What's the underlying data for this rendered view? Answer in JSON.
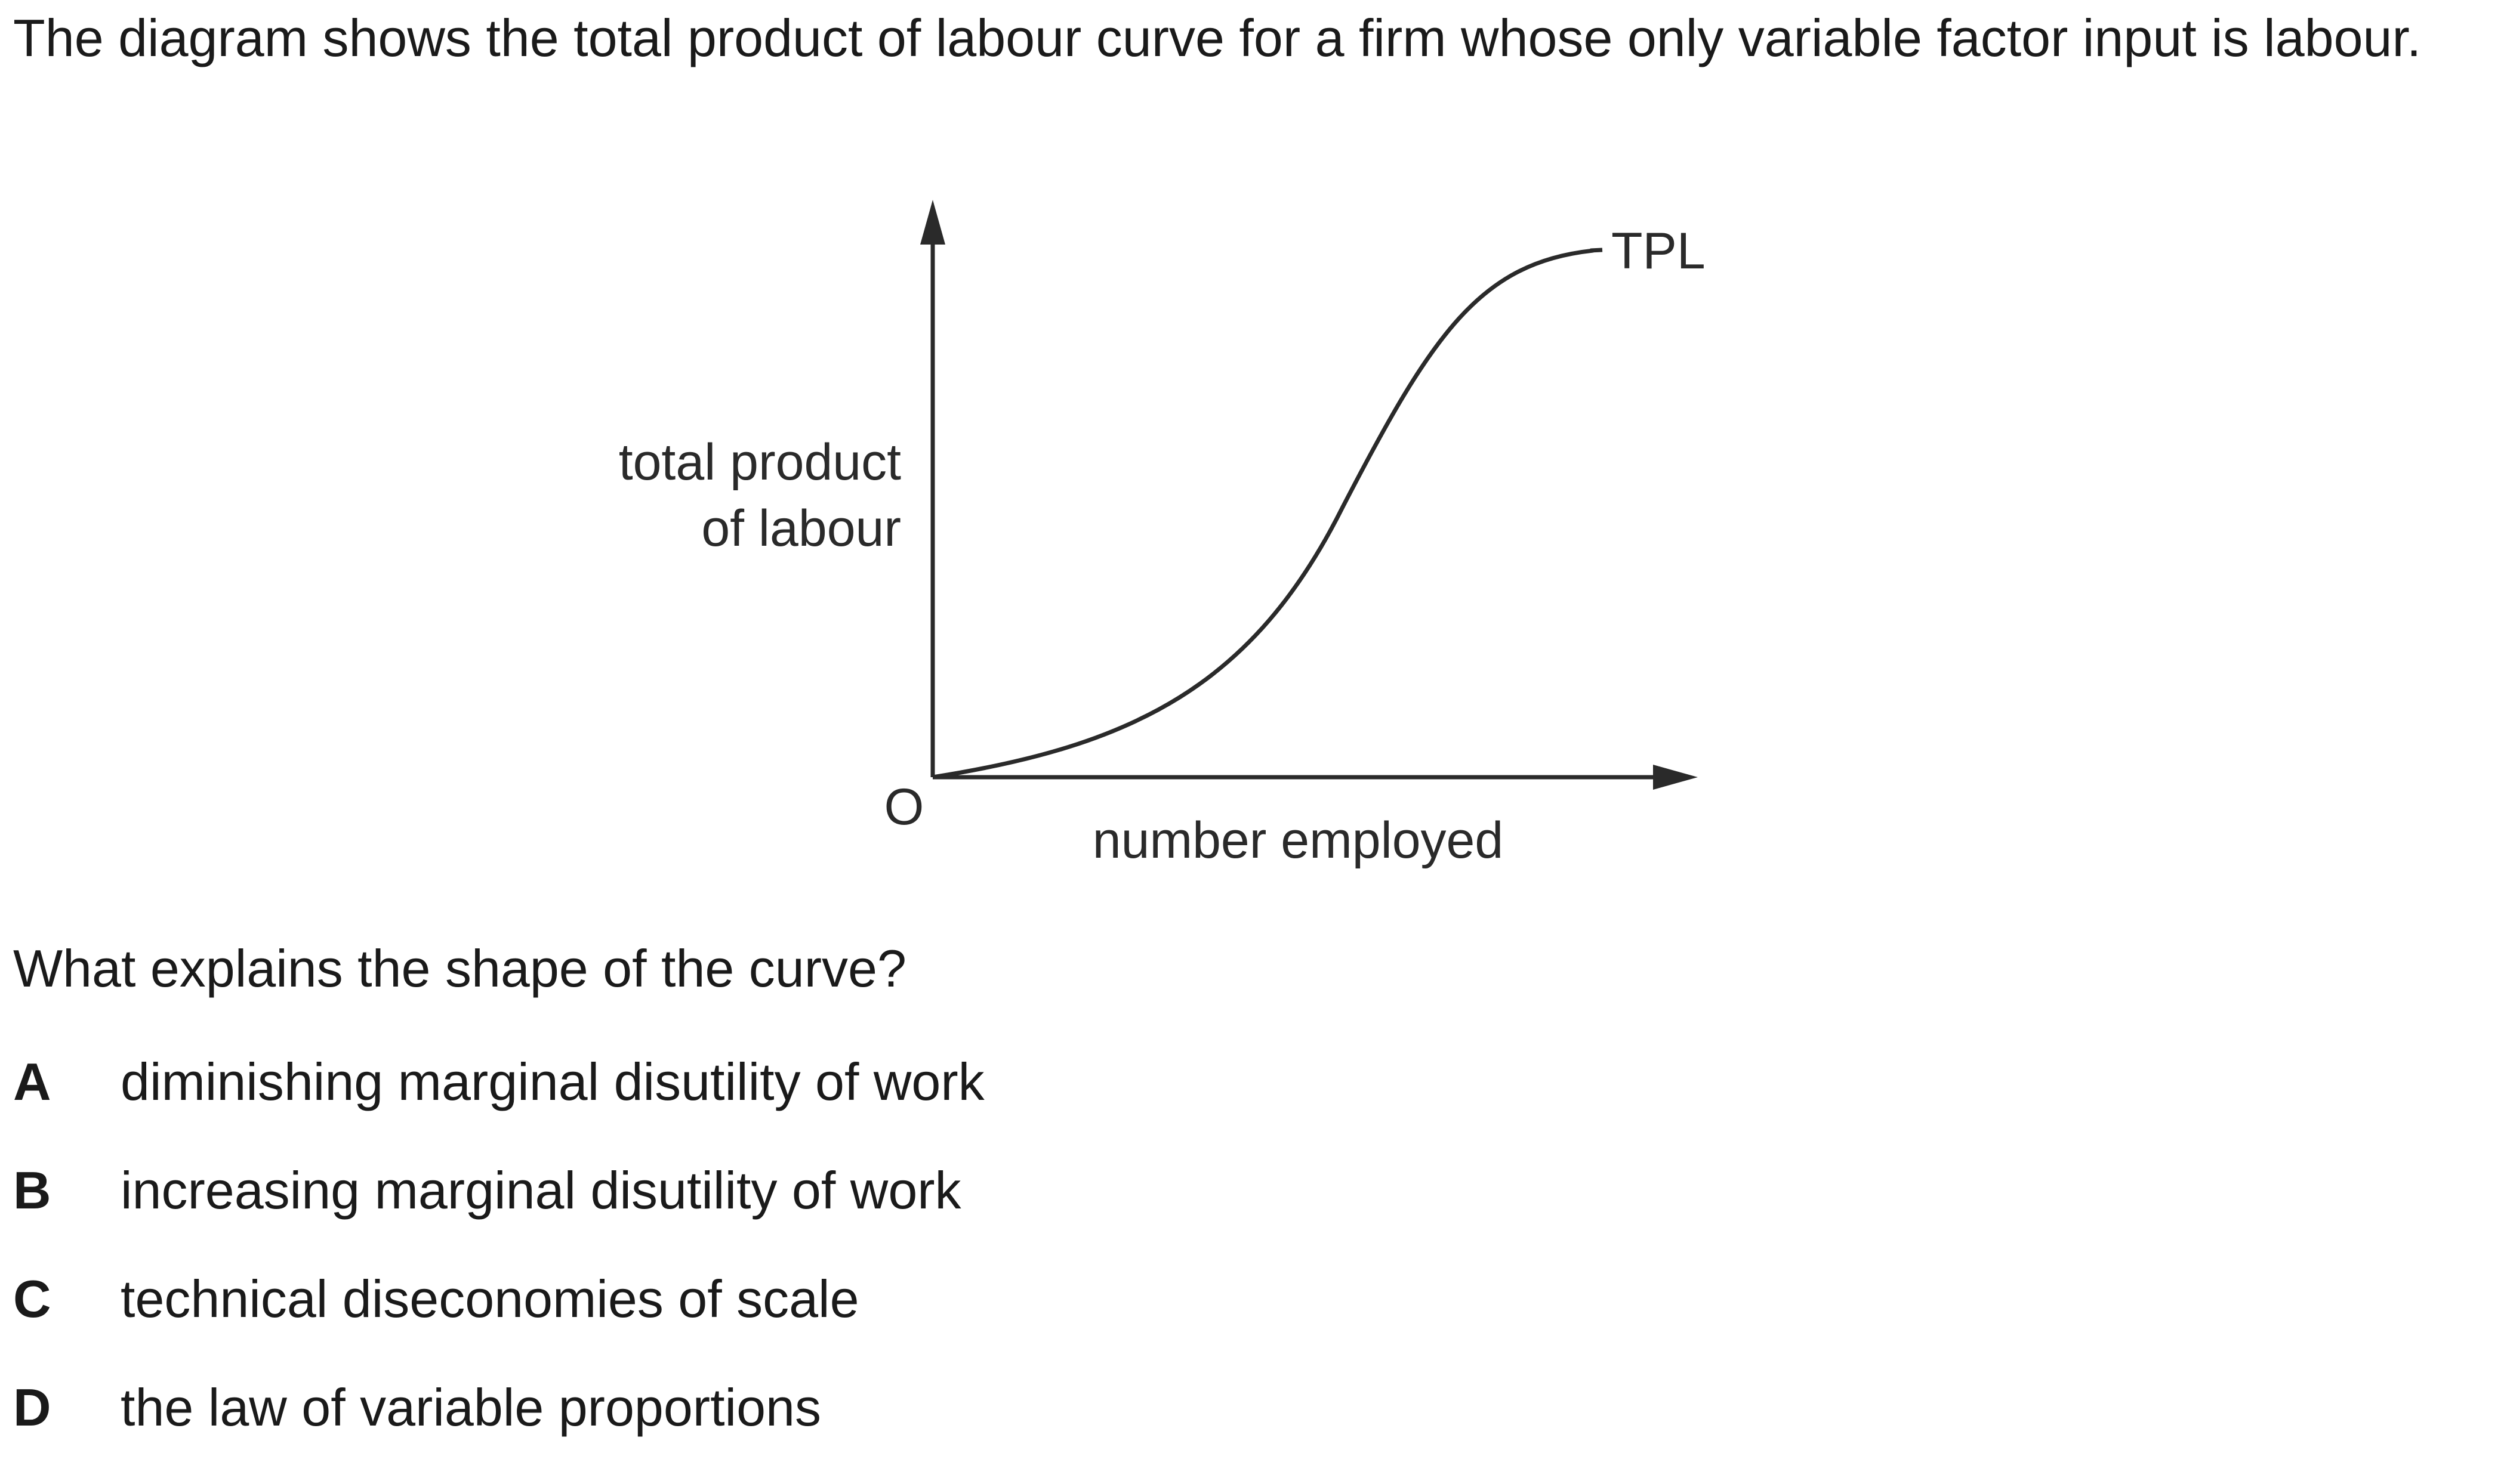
{
  "intro_text": "The diagram shows the total product of labour curve for a firm whose only variable factor input is labour.",
  "diagram": {
    "y_axis_label_line1": "total product",
    "y_axis_label_line2": "of labour",
    "x_axis_label": "number employed",
    "origin_label": "O",
    "curve_label": "TPL"
  },
  "question": "What explains the shape of the curve?",
  "options": [
    {
      "letter": "A",
      "text": "diminishing marginal disutility of work"
    },
    {
      "letter": "B",
      "text": "increasing marginal disutility of work"
    },
    {
      "letter": "C",
      "text": "technical diseconomies of scale"
    },
    {
      "letter": "D",
      "text": "the law of variable proportions"
    }
  ]
}
